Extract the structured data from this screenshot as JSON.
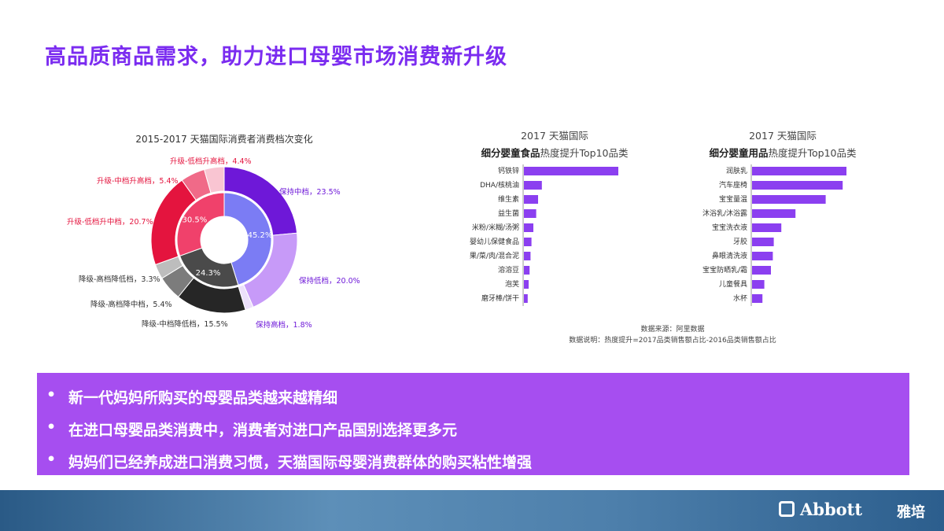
{
  "page": {
    "title": "高品质商品需求，助力进口母婴市场消费新升级",
    "bullets": [
      "新一代妈妈所购买的母婴品类越来越精细",
      "在进口母婴品类消费中，消费者对进口产品国别选择更多元",
      "妈妈们已经养成进口消费习惯，天猫国际母婴消费群体的购买粘性增强"
    ],
    "footer": {
      "logo_text": "Abbott",
      "logo_cn": "雅培"
    },
    "source_line1": "数据来源：阿里数据",
    "source_line2": "数据说明：热度提升=2017品类销售额占比-2016品类销售额占比"
  },
  "chart_data": [
    {
      "type": "pie",
      "title": "2015-2017 天猫国际消费者消费档次变化",
      "inner": [
        {
          "name": "升级",
          "value": 30.5,
          "label": "30.5%",
          "color": "#f0416b"
        },
        {
          "name": "保持",
          "value": 45.2,
          "label": "45.2%",
          "color": "#7b7cf4"
        },
        {
          "name": "降级",
          "value": 24.3,
          "label": "24.3%",
          "color": "#4a4a4a"
        }
      ],
      "outer": [
        {
          "name": "保持中档",
          "value": 23.5,
          "label": "保持中档，23.5%",
          "color": "#6e18d8"
        },
        {
          "name": "保持低档",
          "value": 20.0,
          "label": "保持低档，20.0%",
          "color": "#c79af8"
        },
        {
          "name": "保持高档",
          "value": 1.8,
          "label": "保持高档，1.8%",
          "color": "#ece0fb"
        },
        {
          "name": "降级-中档降低档",
          "value": 15.5,
          "label": "降级-中档降低档，15.5%",
          "color": "#262626"
        },
        {
          "name": "降级-高档降中档",
          "value": 5.4,
          "label": "降级-高档降中档，5.4%",
          "color": "#7c7c7c"
        },
        {
          "name": "降级-高档降低档",
          "value": 3.3,
          "label": "降级-高档降低档，3.3%",
          "color": "#bdbdbd"
        },
        {
          "name": "升级-低档升中档",
          "value": 20.7,
          "label": "升级-低档升中档，20.7%",
          "color": "#e4143e"
        },
        {
          "name": "升级-中档升高档",
          "value": 5.4,
          "label": "升级-中档升高档，5.4%",
          "color": "#f06a88"
        },
        {
          "name": "升级-低档升高档",
          "value": 4.4,
          "label": "升级-低档升高档，4.4%",
          "color": "#f9c5d2"
        }
      ]
    },
    {
      "type": "bar",
      "title_line1": "2017 天猫国际",
      "title_bold": "细分婴童食品",
      "title_rest": "热度提升Top10品类",
      "categories": [
        "钙铁锌",
        "DHA/核桃油",
        "维生素",
        "益生菌",
        "米粉/米糊/汤粥",
        "婴幼儿保健食品",
        "果/菜/肉/混合泥",
        "溶溶豆",
        "泡芙",
        "磨牙棒/饼干"
      ],
      "values": [
        100,
        19,
        15,
        13,
        10,
        8,
        7,
        6,
        5,
        4
      ],
      "color": "#8b3ff0"
    },
    {
      "type": "bar",
      "title_line1": "2017 天猫国际",
      "title_bold": "细分婴童用品",
      "title_rest": "热度提升Top10品类",
      "categories": [
        "润肤乳",
        "汽车座椅",
        "宝宝量温",
        "沐浴乳/沐浴露",
        "宝宝洗衣液",
        "牙胶",
        "鼻眼清洗液",
        "宝宝防晒乳/霜",
        "儿童餐具",
        "水杯"
      ],
      "values": [
        100,
        96,
        78,
        46,
        31,
        23,
        22,
        20,
        13,
        11
      ],
      "color": "#8b3ff0"
    }
  ]
}
